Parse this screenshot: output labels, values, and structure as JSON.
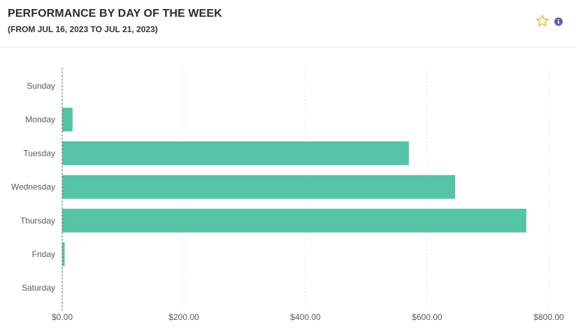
{
  "header": {
    "title": "PERFORMANCE BY DAY OF THE WEEK",
    "subtitle": "(FROM JUL 16, 2023 TO JUL 21, 2023)"
  },
  "icons": {
    "favorite": "star-outline-icon",
    "info": "info-icon"
  },
  "colors": {
    "bar": "#55c3a6",
    "star": "#f0b429",
    "info": "#6b5ba8"
  },
  "chart_data": {
    "type": "bar",
    "orientation": "horizontal",
    "categories": [
      "Sunday",
      "Monday",
      "Tuesday",
      "Wednesday",
      "Thursday",
      "Friday",
      "Saturday"
    ],
    "values": [
      0,
      17,
      570,
      646,
      763,
      4,
      0
    ],
    "xlim": [
      0,
      800
    ],
    "xticks": [
      0,
      200,
      400,
      600,
      800
    ],
    "xtick_labels": [
      "$0.00",
      "$200.00",
      "$400.00",
      "$600.00",
      "$800.00"
    ],
    "grid": true
  }
}
